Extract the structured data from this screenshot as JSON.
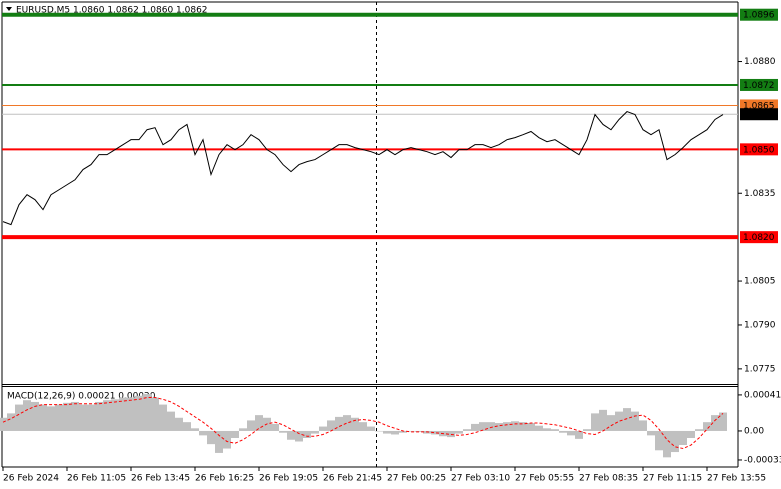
{
  "chart_data": [
    {
      "type": "line",
      "title": "EURUSD,M5  1.0860 1.0862 1.0860 1.0862",
      "color": "#000000",
      "ylim": [
        1.077,
        1.09
      ],
      "yticks": [
        1.0775,
        {
          "value": 1.079,
          "label": "1.0790"
        },
        1.0805,
        1.0835,
        {
          "value": 1.088,
          "label": "1.0880"
        }
      ],
      "levels": [
        {
          "value": 1.0896,
          "color": "#137d13",
          "line_width": 4
        },
        {
          "value": 1.0872,
          "color": "#137d13",
          "line_width": 2
        },
        {
          "value": 1.0865,
          "color": "#f07828",
          "line_width": 1
        },
        {
          "value": 1.0862,
          "color": "#c0c0c0",
          "label_color": "#000000",
          "line_width": 1
        },
        {
          "value": 1.085,
          "label": "1.0850",
          "color": "#ff0000",
          "line_width": 2
        },
        {
          "value": 1.082,
          "label": "1.0820",
          "color": "#ff0000",
          "line_width": 4
        }
      ],
      "values": [
        1.08253,
        1.08243,
        1.08311,
        1.08345,
        1.08328,
        1.08294,
        1.08345,
        1.08362,
        1.08379,
        1.08396,
        1.08431,
        1.08448,
        1.08482,
        1.08482,
        1.08499,
        1.08516,
        1.08533,
        1.08533,
        1.08567,
        1.08574,
        1.08516,
        1.08533,
        1.08567,
        1.08585,
        1.08482,
        1.08533,
        1.08414,
        1.08482,
        1.08516,
        1.08499,
        1.08516,
        1.0855,
        1.08533,
        1.08499,
        1.08482,
        1.08448,
        1.08424,
        1.08448,
        1.08458,
        1.08465,
        1.08482,
        1.08499,
        1.08516,
        1.08516,
        1.08506,
        1.08499,
        1.08492,
        1.08482,
        1.08499,
        1.08482,
        1.08499,
        1.08506,
        1.08499,
        1.08492,
        1.08482,
        1.08492,
        1.08472,
        1.08499,
        1.08499,
        1.08516,
        1.08516,
        1.08506,
        1.08516,
        1.08533,
        1.0854,
        1.0855,
        1.08561,
        1.0854,
        1.08526,
        1.08533,
        1.08516,
        1.08499,
        1.08482,
        1.08533,
        1.08619,
        1.08585,
        1.08567,
        1.08602,
        1.08629,
        1.08619,
        1.08567,
        1.0855,
        1.08567,
        1.08465,
        1.08482,
        1.08506,
        1.08533,
        1.0855,
        1.08567,
        1.08602,
        1.08619
      ]
    },
    {
      "type": "macd",
      "title": "MACD(12,26,9) 0.00021 0.00020",
      "ylim": [
        -0.00041,
        0.0005
      ],
      "yticks": [
        0.00041,
        {
          "value": 0,
          "label": "0.00"
        },
        -0.00033
      ],
      "xticks": [
        "26 Feb 2024",
        "26 Feb 11:05",
        "26 Feb 13:45",
        "26 Feb 16:25",
        "26 Feb 19:05",
        "26 Feb 21:45",
        "27 Feb 00:25",
        "27 Feb 03:10",
        "27 Feb 05:55",
        "27 Feb 08:35",
        "27 Feb 11:15",
        "27 Feb 13:55"
      ],
      "series": [
        {
          "type": "bar",
          "color": "#c0c0c0",
          "values": [
            0.00015,
            0.0002,
            0.0003,
            0.00035,
            0.00033,
            0.0003,
            0.00028,
            0.0003,
            0.00032,
            0.00033,
            0.0003,
            0.0003,
            0.00033,
            0.00035,
            0.00036,
            0.00038,
            0.00038,
            0.0004,
            0.00042,
            0.00038,
            0.0003,
            0.00022,
            0.00015,
            0.0001,
            3e-05,
            -5e-05,
            -0.00015,
            -0.00025,
            -0.0002,
            -8e-05,
            3e-05,
            0.00012,
            0.00018,
            0.00015,
            8e-05,
            -2e-05,
            -0.0001,
            -0.00012,
            -8e-05,
            -3e-05,
            5e-05,
            0.00012,
            0.00016,
            0.00018,
            0.00015,
            0.0001,
            5e-05,
            0,
            -3e-05,
            -4e-05,
            -2e-05,
            0,
            -1e-05,
            -3e-05,
            -4e-05,
            -6e-05,
            -7e-05,
            -3e-05,
            2e-05,
            8e-05,
            0.0001,
            0.0001,
            9e-05,
            0.0001,
            0.00011,
            0.0001,
            9e-05,
            6e-05,
            3e-05,
            2e-05,
            -2e-05,
            -5e-05,
            -9e-05,
            2e-05,
            0.0002,
            0.00024,
            0.00018,
            0.00022,
            0.00026,
            0.00022,
            0.00012,
            -5e-05,
            -0.00022,
            -0.0003,
            -0.00024,
            -0.00016,
            -8e-05,
            2e-05,
            0.0001,
            0.00018,
            0.00021
          ]
        },
        {
          "type": "line",
          "color": "#ff0000",
          "dashed": true,
          "values": [
            0.0001,
            0.00014,
            0.00019,
            0.00024,
            0.00028,
            0.0003,
            0.0003,
            0.0003,
            0.0003,
            0.00031,
            0.00031,
            0.00031,
            0.00031,
            0.00032,
            0.00033,
            0.00034,
            0.00035,
            0.00036,
            0.00038,
            0.00038,
            0.00036,
            0.00033,
            0.00028,
            0.00022,
            0.00016,
            0.0001,
            3e-05,
            -5e-05,
            -0.00012,
            -0.00014,
            -0.0001,
            -4e-05,
            3e-05,
            8e-05,
            0.0001,
            7e-05,
            2e-05,
            -3e-05,
            -6e-05,
            -6e-05,
            -4e-05,
            0,
            5e-05,
            9e-05,
            0.00012,
            0.00013,
            0.00012,
            0.0001,
            6e-05,
            3e-05,
            0,
            -1e-05,
            -1e-05,
            -1e-05,
            -2e-05,
            -3e-05,
            -4e-05,
            -5e-05,
            -4e-05,
            -2e-05,
            1e-05,
            4e-05,
            6e-05,
            7e-05,
            8e-05,
            8e-05,
            9e-05,
            9e-05,
            8e-05,
            7e-05,
            5e-05,
            3e-05,
            0,
            -3e-05,
            -4e-05,
            0,
            6e-05,
            0.00011,
            0.00014,
            0.00017,
            0.00018,
            0.00012,
            2e-05,
            -0.0001,
            -0.00018,
            -0.0002,
            -0.00016,
            -8e-05,
            2e-05,
            0.00012,
            0.0002
          ]
        }
      ]
    }
  ]
}
